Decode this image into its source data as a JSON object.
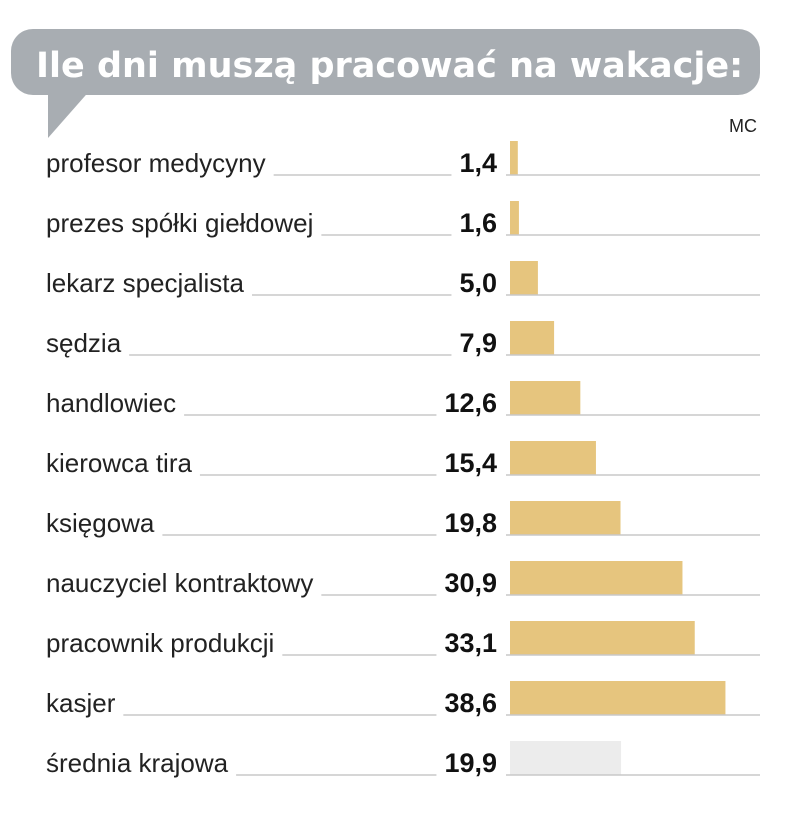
{
  "title": "Ile dni muszą pracować na wakacje:",
  "unit": "MC",
  "colors": {
    "bubble": "#a8adb2",
    "bar": "#e6c57e",
    "bar_average": "#ececec",
    "leader": "#c8c8c8",
    "value_average": "#c4c4c4"
  },
  "chart_data": {
    "type": "bar",
    "orientation": "horizontal",
    "title": "Ile dni muszą pracować na wakacje:",
    "unit_label": "MC",
    "categories": [
      "profesor medycyny",
      "prezes spółki giełdowej",
      "lekarz specjalista",
      "sędzia",
      "handlowiec",
      "kierowca tira",
      "księgowa",
      "nauczyciel kontraktowy",
      "pracownik produkcji",
      "kasjer",
      "średnia krajowa"
    ],
    "values": [
      1.4,
      1.6,
      5.0,
      7.9,
      12.6,
      15.4,
      19.8,
      30.9,
      33.1,
      38.6,
      19.9
    ],
    "value_labels": [
      "1,4",
      "1,6",
      "5,0",
      "7,9",
      "12,6",
      "15,4",
      "19,8",
      "30,9",
      "33,1",
      "38,6",
      "19,9"
    ],
    "highlight_index": 10,
    "xlim": [
      0,
      43
    ],
    "grid": false,
    "legend": "none"
  }
}
